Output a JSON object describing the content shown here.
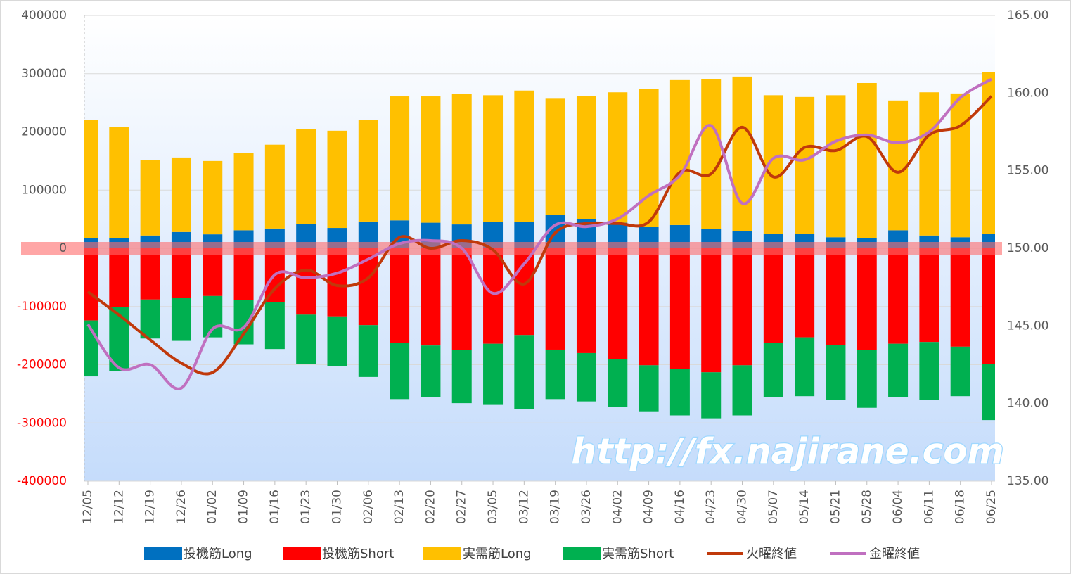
{
  "chart_data": {
    "type": "bar",
    "stacked": true,
    "categories": [
      "12/05",
      "12/12",
      "12/19",
      "12/26",
      "01/02",
      "01/09",
      "01/16",
      "01/23",
      "01/30",
      "02/06",
      "02/13",
      "02/20",
      "02/27",
      "03/05",
      "03/12",
      "03/19",
      "03/26",
      "04/02",
      "04/09",
      "04/16",
      "04/23",
      "04/30",
      "05/07",
      "05/14",
      "05/21",
      "05/28",
      "06/04",
      "06/11",
      "06/18",
      "06/25"
    ],
    "series": [
      {
        "name": "投機筋Long",
        "color": "#0070c0",
        "values": [
          18000,
          18000,
          22000,
          28000,
          24000,
          31000,
          34000,
          42000,
          35000,
          46000,
          48000,
          44000,
          41000,
          45000,
          45000,
          57000,
          50000,
          44000,
          37000,
          40000,
          33000,
          30000,
          25000,
          25000,
          19000,
          18000,
          31000,
          22000,
          19000,
          25000
        ]
      },
      {
        "name": "投機筋Short",
        "color": "#ff0000",
        "values": [
          -124000,
          -101000,
          -88000,
          -85000,
          -82000,
          -89000,
          -92000,
          -114000,
          -117000,
          -132000,
          -162000,
          -167000,
          -175000,
          -164000,
          -149000,
          -174000,
          -180000,
          -190000,
          -201000,
          -207000,
          -213000,
          -201000,
          -162000,
          -153000,
          -166000,
          -175000,
          -164000,
          -161000,
          -169000,
          -199000
        ]
      },
      {
        "name": "実需筋Long",
        "color": "#ffc000",
        "values": [
          202000,
          191000,
          130000,
          128000,
          126000,
          133000,
          144000,
          163000,
          167000,
          174000,
          213000,
          217000,
          224000,
          218000,
          226000,
          200000,
          212000,
          224000,
          237000,
          249000,
          258000,
          265000,
          238000,
          235000,
          244000,
          266000,
          223000,
          246000,
          247000,
          278000
        ]
      },
      {
        "name": "実需筋Short",
        "color": "#00b050",
        "values": [
          -96000,
          -110000,
          -67000,
          -74000,
          -71000,
          -76000,
          -81000,
          -85000,
          -86000,
          -89000,
          -97000,
          -89000,
          -91000,
          -105000,
          -127000,
          -85000,
          -83000,
          -83000,
          -79000,
          -80000,
          -79000,
          -86000,
          -94000,
          -101000,
          -95000,
          -99000,
          -92000,
          -100000,
          -85000,
          -96000
        ]
      },
      {
        "name": "火曜終値",
        "color": "#c0390b",
        "type": "line",
        "axis": "y2",
        "values": [
          147.2,
          145.7,
          144.1,
          142.6,
          142.0,
          144.5,
          147.4,
          148.6,
          147.6,
          148.1,
          150.7,
          150.0,
          150.5,
          149.9,
          147.7,
          151.0,
          151.6,
          151.6,
          151.7,
          154.9,
          154.8,
          157.8,
          154.6,
          156.5,
          156.3,
          157.2,
          154.9,
          157.3,
          157.9,
          159.8
        ]
      },
      {
        "name": "金曜終値",
        "color": "#c070c0",
        "type": "line",
        "axis": "y2",
        "values": [
          145.1,
          142.3,
          142.5,
          141.0,
          144.8,
          144.9,
          148.3,
          148.1,
          148.4,
          149.3,
          150.3,
          150.5,
          150.0,
          147.1,
          149.0,
          151.5,
          151.4,
          151.9,
          153.4,
          154.7,
          157.9,
          152.9,
          155.8,
          155.7,
          156.9,
          157.3,
          156.8,
          157.5,
          159.7,
          160.9
        ]
      }
    ],
    "ylim": [
      -400000,
      400000
    ],
    "yticks": [
      -400000,
      -300000,
      -200000,
      -100000,
      0,
      100000,
      200000,
      300000,
      400000
    ],
    "y2lim": [
      135,
      165
    ],
    "y2ticks": [
      {
        "value": 135,
        "label": "135.00"
      },
      {
        "value": 140,
        "label": "140.00"
      },
      {
        "value": 145,
        "label": "145.00"
      },
      {
        "value": 150,
        "label": "150.00"
      },
      {
        "value": 155,
        "label": "155.00"
      },
      {
        "value": 160,
        "label": "160.00"
      },
      {
        "value": 165,
        "label": "165.00"
      }
    ],
    "grid": true,
    "legend": "bottom",
    "watermark": "http://fx.najirane.com"
  }
}
